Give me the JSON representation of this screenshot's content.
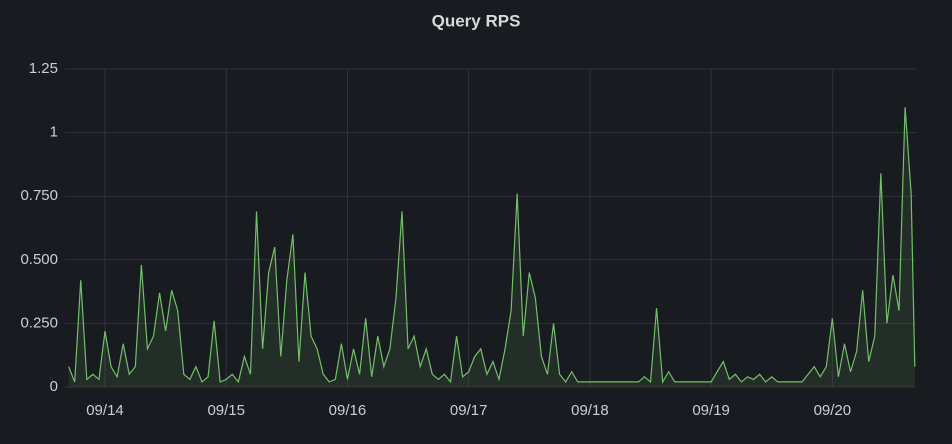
{
  "chart_data": {
    "type": "line",
    "title": "Query RPS",
    "x": [
      13.7,
      13.75,
      13.8,
      13.85,
      13.9,
      13.95,
      14.0,
      14.05,
      14.1,
      14.15,
      14.2,
      14.25,
      14.3,
      14.35,
      14.4,
      14.45,
      14.5,
      14.55,
      14.6,
      14.65,
      14.7,
      14.75,
      14.8,
      14.85,
      14.9,
      14.95,
      15.0,
      15.05,
      15.1,
      15.15,
      15.2,
      15.25,
      15.3,
      15.35,
      15.4,
      15.45,
      15.5,
      15.55,
      15.6,
      15.65,
      15.7,
      15.75,
      15.8,
      15.85,
      15.9,
      15.95,
      16.0,
      16.05,
      16.1,
      16.15,
      16.2,
      16.25,
      16.3,
      16.35,
      16.4,
      16.45,
      16.5,
      16.55,
      16.6,
      16.65,
      16.7,
      16.75,
      16.8,
      16.85,
      16.9,
      16.95,
      17.0,
      17.05,
      17.1,
      17.15,
      17.2,
      17.25,
      17.3,
      17.35,
      17.4,
      17.45,
      17.5,
      17.55,
      17.6,
      17.65,
      17.7,
      17.75,
      17.8,
      17.85,
      17.9,
      17.95,
      18.0,
      18.05,
      18.1,
      18.15,
      18.2,
      18.25,
      18.3,
      18.35,
      18.4,
      18.45,
      18.5,
      18.55,
      18.6,
      18.65,
      18.7,
      18.75,
      18.8,
      18.85,
      18.9,
      18.95,
      19.0,
      19.05,
      19.1,
      19.15,
      19.2,
      19.25,
      19.3,
      19.35,
      19.4,
      19.45,
      19.5,
      19.55,
      19.6,
      19.65,
      19.7,
      19.75,
      19.8,
      19.85,
      19.9,
      19.95,
      20.0,
      20.05,
      20.1,
      20.15,
      20.2,
      20.25,
      20.3,
      20.35,
      20.4,
      20.45,
      20.5,
      20.55,
      20.6,
      20.65,
      20.68
    ],
    "series": [
      {
        "color": "#73bf69",
        "values": [
          0.08,
          0.02,
          0.42,
          0.03,
          0.05,
          0.03,
          0.22,
          0.08,
          0.04,
          0.17,
          0.05,
          0.08,
          0.48,
          0.15,
          0.2,
          0.37,
          0.22,
          0.38,
          0.3,
          0.05,
          0.03,
          0.08,
          0.02,
          0.04,
          0.26,
          0.02,
          0.03,
          0.05,
          0.02,
          0.12,
          0.05,
          0.69,
          0.15,
          0.45,
          0.55,
          0.12,
          0.42,
          0.6,
          0.1,
          0.45,
          0.2,
          0.15,
          0.05,
          0.02,
          0.03,
          0.17,
          0.03,
          0.15,
          0.05,
          0.27,
          0.04,
          0.2,
          0.08,
          0.15,
          0.35,
          0.69,
          0.15,
          0.2,
          0.08,
          0.15,
          0.05,
          0.03,
          0.05,
          0.02,
          0.2,
          0.04,
          0.06,
          0.12,
          0.15,
          0.05,
          0.1,
          0.03,
          0.15,
          0.3,
          0.76,
          0.2,
          0.45,
          0.35,
          0.12,
          0.05,
          0.25,
          0.05,
          0.02,
          0.06,
          0.02,
          0.02,
          0.02,
          0.02,
          0.02,
          0.02,
          0.02,
          0.02,
          0.02,
          0.02,
          0.02,
          0.04,
          0.02,
          0.31,
          0.02,
          0.06,
          0.02,
          0.02,
          0.02,
          0.02,
          0.02,
          0.02,
          0.02,
          0.06,
          0.1,
          0.03,
          0.05,
          0.02,
          0.04,
          0.03,
          0.05,
          0.02,
          0.04,
          0.02,
          0.02,
          0.02,
          0.02,
          0.02,
          0.05,
          0.08,
          0.04,
          0.08,
          0.27,
          0.04,
          0.17,
          0.06,
          0.14,
          0.38,
          0.1,
          0.2,
          0.84,
          0.25,
          0.44,
          0.3,
          1.1,
          0.76,
          0.08
        ]
      }
    ],
    "xlim": [
      13.67,
      20.69
    ],
    "xticks": [
      {
        "value": 14,
        "label": "09/14"
      },
      {
        "value": 15,
        "label": "09/15"
      },
      {
        "value": 16,
        "label": "09/16"
      },
      {
        "value": 17,
        "label": "09/17"
      },
      {
        "value": 18,
        "label": "09/18"
      },
      {
        "value": 19,
        "label": "09/19"
      },
      {
        "value": 20,
        "label": "09/20"
      }
    ],
    "ylim": [
      0,
      1.25
    ],
    "yticks": [
      0,
      {
        "value": 0.25,
        "label": "0.250"
      },
      {
        "value": 0.5,
        "label": "0.500"
      },
      {
        "value": 0.75,
        "label": "0.750"
      },
      1,
      1.25
    ],
    "grid": true
  }
}
